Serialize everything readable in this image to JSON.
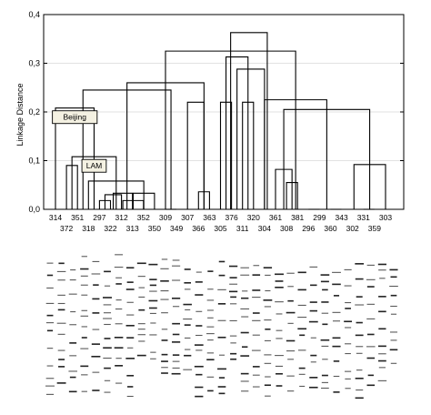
{
  "chart_data": {
    "type": "dendrogram",
    "ylabel": "Linkage Distance",
    "ylim": [
      0,
      0.4
    ],
    "yticks": [
      "0,0",
      "0,1",
      "0,2",
      "0,3",
      "0,4"
    ],
    "grid": "horizontal, light",
    "leaves_top_row": [
      "314",
      "351",
      "297",
      "312",
      "352",
      "309",
      "307",
      "363",
      "376",
      "320",
      "361",
      "381",
      "299",
      "343",
      "331",
      "303"
    ],
    "leaves_bottom_row": [
      "372",
      "318",
      "322",
      "313",
      "350",
      "349",
      "366",
      "305",
      "311",
      "304",
      "308",
      "296",
      "360",
      "302",
      "359"
    ],
    "annotations": [
      {
        "label": "LAM",
        "attached_to_height": 0.11
      },
      {
        "label": "Beijing",
        "attached_to_height": 0.205
      }
    ],
    "merges": [
      {
        "x": [
          1,
          2
        ],
        "h": 0.09
      },
      {
        "x": [
          4,
          5
        ],
        "h": 0.018
      },
      {
        "x": [
          4.5,
          6
        ],
        "h": 0.03
      },
      {
        "x": [
          5.25,
          7
        ],
        "h": 0.033
      },
      {
        "x": [
          6.125,
          8
        ],
        "h": 0.018
      },
      {
        "x": [
          7.06,
          9
        ],
        "h": 0.033
      },
      {
        "x": [
          3,
          8.03
        ],
        "h": 0.058
      },
      {
        "x": [
          1.5,
          5.52
        ],
        "h": 0.108
      },
      {
        "x": [
          0,
          3.51
        ],
        "h": 0.208
      },
      {
        "x": [
          10,
          11
        ],
        "h": 0.0
      },
      {
        "x": [
          13,
          14
        ],
        "h": 0.036
      },
      {
        "x": [
          12,
          13.5
        ],
        "h": 0.22
      },
      {
        "x": [
          15,
          16
        ],
        "h": 0.22
      },
      {
        "x": [
          17,
          18
        ],
        "h": 0.22
      },
      {
        "x": [
          15.5,
          17.5
        ],
        "h": 0.313
      },
      {
        "x": [
          16.5,
          19
        ],
        "h": 0.288
      },
      {
        "x": [
          21,
          22
        ],
        "h": 0.055
      },
      {
        "x": [
          20,
          21.5
        ],
        "h": 0.082
      },
      {
        "x": [
          23,
          24
        ],
        "h": 0.0
      },
      {
        "x": [
          25,
          26
        ],
        "h": 0.0
      },
      {
        "x": [
          24.5,
          27
        ],
        "h": 0.0
      },
      {
        "x": [
          28,
          29
        ],
        "h": 0.0
      },
      {
        "x": [
          25.75,
          28.5
        ],
        "h": 0.0
      },
      {
        "x": [
          27.13,
          30
        ],
        "h": 0.092
      },
      {
        "x": [
          20.75,
          28.56
        ],
        "h": 0.205
      },
      {
        "x": [
          19,
          24.66
        ],
        "h": 0.225
      },
      {
        "x": [
          2.5,
          10.5
        ],
        "h": 0.245
      },
      {
        "x": [
          6.5,
          13.5
        ],
        "h": 0.26
      },
      {
        "x": [
          10,
          21.83
        ],
        "h": 0.325
      },
      {
        "x": [
          15.92,
          19.25
        ],
        "h": 0.363
      }
    ]
  }
}
